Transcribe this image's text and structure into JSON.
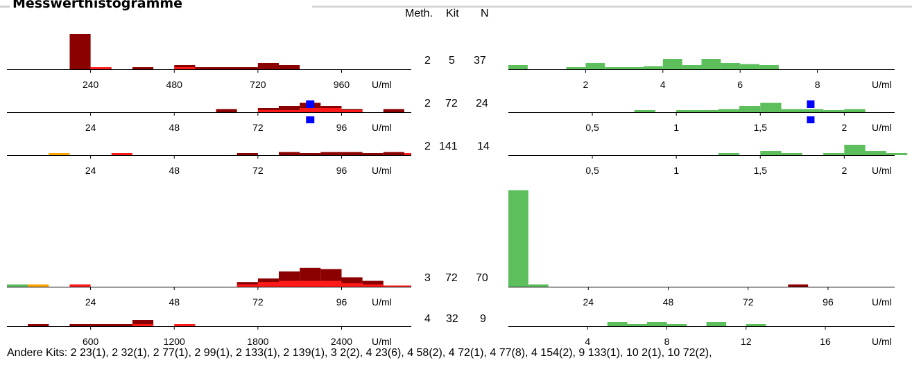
{
  "title": "Messwerthistogramme",
  "header": {
    "method": "Meth.",
    "kit": "Kit",
    "n": "N"
  },
  "colors": {
    "dark_red": "#8b0000",
    "red": "#ff1a1a",
    "orange": "#ffa500",
    "green": "#5cbf5c",
    "blue": "#0000ff"
  },
  "chart_data": [
    {
      "type": "bar",
      "method": "2",
      "kit": "5",
      "n": "37",
      "left": {
        "unit": "U/ml",
        "xlim": [
          0,
          1160
        ],
        "ticks": [
          {
            "value": 240,
            "label": "240"
          },
          {
            "value": 480,
            "label": "480"
          },
          {
            "value": 720,
            "label": "720"
          },
          {
            "value": 960,
            "label": "960"
          }
        ],
        "bars": [
          {
            "x0": 180,
            "x1": 240,
            "value": 17,
            "color": "#8b0000"
          },
          {
            "x0": 240,
            "x1": 300,
            "value": 1,
            "color": "#ff1a1a"
          },
          {
            "x0": 360,
            "x1": 420,
            "value": 1,
            "color": "#8b0000"
          },
          {
            "x0": 480,
            "x1": 540,
            "value": 2,
            "color": "#8b0000"
          },
          {
            "x0": 480,
            "x1": 540,
            "value": 1,
            "color": "#ff1a1a"
          },
          {
            "x0": 540,
            "x1": 720,
            "value": 1,
            "color": "#8b0000"
          },
          {
            "x0": 720,
            "x1": 780,
            "value": 3,
            "color": "#8b0000"
          },
          {
            "x0": 780,
            "x1": 840,
            "value": 2,
            "color": "#8b0000"
          }
        ]
      },
      "right": {
        "unit": "U/ml",
        "xlim": [
          0,
          10
        ],
        "ticks": [
          {
            "value": 2,
            "label": "2"
          },
          {
            "value": 4,
            "label": "4"
          },
          {
            "value": 6,
            "label": "6"
          },
          {
            "value": 8,
            "label": "8"
          }
        ],
        "bars": [
          {
            "x0": 0,
            "x1": 0.5,
            "value": 2
          },
          {
            "x0": 1.5,
            "x1": 2,
            "value": 1
          },
          {
            "x0": 2,
            "x1": 2.5,
            "value": 3
          },
          {
            "x0": 2.5,
            "x1": 3.5,
            "value": 1
          },
          {
            "x0": 3.5,
            "x1": 4,
            "value": 1.5
          },
          {
            "x0": 4,
            "x1": 4.5,
            "value": 5
          },
          {
            "x0": 4.5,
            "x1": 5,
            "value": 2
          },
          {
            "x0": 5,
            "x1": 5.5,
            "value": 5
          },
          {
            "x0": 5.5,
            "x1": 6,
            "value": 3
          },
          {
            "x0": 6,
            "x1": 6.5,
            "value": 2.5
          },
          {
            "x0": 6.5,
            "x1": 7,
            "value": 2
          }
        ]
      }
    },
    {
      "type": "bar",
      "method": "2",
      "kit": "72",
      "n": "24",
      "left": {
        "unit": "U/ml",
        "xlim": [
          0,
          116
        ],
        "ticks": [
          {
            "value": 24,
            "label": "24"
          },
          {
            "value": 48,
            "label": "48"
          },
          {
            "value": 72,
            "label": "72"
          },
          {
            "value": 96,
            "label": "96"
          }
        ],
        "bars": [
          {
            "x0": 60,
            "x1": 66,
            "value": 1.5,
            "color": "#8b0000"
          },
          {
            "x0": 72,
            "x1": 78,
            "value": 2,
            "color": "#8b0000"
          },
          {
            "x0": 78,
            "x1": 84,
            "value": 3,
            "color": "#8b0000"
          },
          {
            "x0": 84,
            "x1": 90,
            "value": 4.5,
            "color": "#8b0000"
          },
          {
            "x0": 90,
            "x1": 96,
            "value": 3,
            "color": "#8b0000"
          },
          {
            "x0": 96,
            "x1": 102,
            "value": 1.5,
            "color": "#8b0000"
          },
          {
            "x0": 108,
            "x1": 114,
            "value": 1.5,
            "color": "#8b0000"
          },
          {
            "x0": 72,
            "x1": 78,
            "value": 1,
            "color": "#ff1a1a"
          },
          {
            "x0": 78,
            "x1": 84,
            "value": 1,
            "color": "#ff1a1a"
          },
          {
            "x0": 84,
            "x1": 90,
            "value": 2,
            "color": "#ff1a1a"
          },
          {
            "x0": 90,
            "x1": 96,
            "value": 2,
            "color": "#ff1a1a"
          },
          {
            "x0": 96,
            "x1": 102,
            "value": 1,
            "color": "#ff1a1a"
          }
        ],
        "marker": {
          "value": 87
        }
      },
      "right": {
        "unit": "U/ml",
        "xlim": [
          0,
          2.3
        ],
        "ticks": [
          {
            "value": 0.5,
            "label": "0,5"
          },
          {
            "value": 1,
            "label": "1"
          },
          {
            "value": 1.5,
            "label": "1,5"
          },
          {
            "value": 2,
            "label": "2"
          }
        ],
        "bars": [
          {
            "x0": 0.75,
            "x1": 0.875,
            "value": 1
          },
          {
            "x0": 1,
            "x1": 1.25,
            "value": 1
          },
          {
            "x0": 1.25,
            "x1": 1.375,
            "value": 1.5
          },
          {
            "x0": 1.375,
            "x1": 1.5,
            "value": 3
          },
          {
            "x0": 1.5,
            "x1": 1.625,
            "value": 4.5
          },
          {
            "x0": 1.625,
            "x1": 1.875,
            "value": 1.5
          },
          {
            "x0": 1.875,
            "x1": 2,
            "value": 1
          },
          {
            "x0": 2,
            "x1": 2.125,
            "value": 1.5
          }
        ],
        "marker": {
          "value": 1.8
        }
      }
    },
    {
      "type": "bar",
      "method": "2",
      "kit": "141",
      "n": "14",
      "left": {
        "unit": "U/ml",
        "xlim": [
          0,
          116
        ],
        "ticks": [
          {
            "value": 24,
            "label": "24"
          },
          {
            "value": 48,
            "label": "48"
          },
          {
            "value": 72,
            "label": "72"
          },
          {
            "value": 96,
            "label": "96"
          }
        ],
        "bars": [
          {
            "x0": 12,
            "x1": 18,
            "value": 1,
            "color": "#ffa500"
          },
          {
            "x0": 30,
            "x1": 36,
            "value": 1,
            "color": "#ff1a1a"
          },
          {
            "x0": 66,
            "x1": 72,
            "value": 1,
            "color": "#8b0000"
          },
          {
            "x0": 78,
            "x1": 84,
            "value": 1.5,
            "color": "#8b0000"
          },
          {
            "x0": 84,
            "x1": 90,
            "value": 1,
            "color": "#8b0000"
          },
          {
            "x0": 90,
            "x1": 102,
            "value": 1.5,
            "color": "#8b0000"
          },
          {
            "x0": 102,
            "x1": 108,
            "value": 1,
            "color": "#8b0000"
          },
          {
            "x0": 108,
            "x1": 114,
            "value": 1.5,
            "color": "#8b0000"
          },
          {
            "x0": 114,
            "x1": 116,
            "value": 1,
            "color": "#ff1a1a"
          }
        ]
      },
      "right": {
        "unit": "U/ml",
        "xlim": [
          0,
          2.3
        ],
        "ticks": [
          {
            "value": 0.5,
            "label": "0,5"
          },
          {
            "value": 1,
            "label": "1"
          },
          {
            "value": 1.5,
            "label": "1,5"
          },
          {
            "value": 2,
            "label": "2"
          }
        ],
        "bars": [
          {
            "x0": 1.25,
            "x1": 1.375,
            "value": 1
          },
          {
            "x0": 1.5,
            "x1": 1.625,
            "value": 2
          },
          {
            "x0": 1.625,
            "x1": 1.75,
            "value": 1
          },
          {
            "x0": 1.875,
            "x1": 2,
            "value": 1
          },
          {
            "x0": 2,
            "x1": 2.125,
            "value": 5
          },
          {
            "x0": 2.125,
            "x1": 2.25,
            "value": 2
          },
          {
            "x0": 2.25,
            "x1": 2.375,
            "value": 1
          }
        ]
      }
    },
    {
      "type": "bar",
      "method": "3",
      "kit": "72",
      "n": "70",
      "left": {
        "unit": "U/ml",
        "xlim": [
          0,
          116
        ],
        "ticks": [
          {
            "value": 24,
            "label": "24"
          },
          {
            "value": 48,
            "label": "48"
          },
          {
            "value": 72,
            "label": "72"
          },
          {
            "value": 96,
            "label": "96"
          }
        ],
        "bars": [
          {
            "x0": 0,
            "x1": 6,
            "value": 1,
            "color": "#5cbf5c"
          },
          {
            "x0": 6,
            "x1": 12,
            "value": 1,
            "color": "#ffa500"
          },
          {
            "x0": 18,
            "x1": 24,
            "value": 1,
            "color": "#ff1a1a"
          },
          {
            "x0": 66,
            "x1": 72,
            "value": 2,
            "color": "#8b0000"
          },
          {
            "x0": 72,
            "x1": 78,
            "value": 3.5,
            "color": "#8b0000"
          },
          {
            "x0": 78,
            "x1": 84,
            "value": 6.5,
            "color": "#8b0000"
          },
          {
            "x0": 84,
            "x1": 90,
            "value": 8,
            "color": "#8b0000"
          },
          {
            "x0": 90,
            "x1": 96,
            "value": 7.5,
            "color": "#8b0000"
          },
          {
            "x0": 96,
            "x1": 102,
            "value": 4,
            "color": "#8b0000"
          },
          {
            "x0": 102,
            "x1": 108,
            "value": 2.5,
            "color": "#8b0000"
          },
          {
            "x0": 66,
            "x1": 72,
            "value": 1,
            "color": "#ff1a1a"
          },
          {
            "x0": 72,
            "x1": 78,
            "value": 2,
            "color": "#ff1a1a"
          },
          {
            "x0": 78,
            "x1": 84,
            "value": 2.5,
            "color": "#ff1a1a"
          },
          {
            "x0": 84,
            "x1": 96,
            "value": 2.5,
            "color": "#ff1a1a"
          },
          {
            "x0": 96,
            "x1": 102,
            "value": 1.5,
            "color": "#ff1a1a"
          },
          {
            "x0": 102,
            "x1": 108,
            "value": 1,
            "color": "#ff1a1a"
          },
          {
            "x0": 108,
            "x1": 116,
            "value": 0.5,
            "color": "#ff1a1a"
          }
        ]
      },
      "right": {
        "unit": "U/ml",
        "xlim": [
          0,
          116
        ],
        "ticks": [
          {
            "value": 24,
            "label": "24"
          },
          {
            "value": 48,
            "label": "48"
          },
          {
            "value": 72,
            "label": "72"
          },
          {
            "value": 96,
            "label": "96"
          }
        ],
        "bars": [
          {
            "x0": 0,
            "x1": 6,
            "value": 41,
            "color": "#5cbf5c"
          },
          {
            "x0": 6,
            "x1": 12,
            "value": 1,
            "color": "#5cbf5c"
          },
          {
            "x0": 84,
            "x1": 90,
            "value": 1,
            "color": "#8b0000"
          }
        ]
      }
    },
    {
      "type": "bar",
      "method": "4",
      "kit": "32",
      "n": "9",
      "left": {
        "unit": "U/ml",
        "xlim": [
          0,
          2900
        ],
        "ticks": [
          {
            "value": 600,
            "label": "600"
          },
          {
            "value": 1200,
            "label": "1200"
          },
          {
            "value": 1800,
            "label": "1800"
          },
          {
            "value": 2400,
            "label": "2400"
          }
        ],
        "bars": [
          {
            "x0": 150,
            "x1": 300,
            "value": 1,
            "color": "#8b0000"
          },
          {
            "x0": 450,
            "x1": 900,
            "value": 1,
            "color": "#8b0000"
          },
          {
            "x0": 900,
            "x1": 1050,
            "value": 3,
            "color": "#8b0000"
          },
          {
            "x0": 900,
            "x1": 1050,
            "value": 1,
            "color": "#ff1a1a"
          },
          {
            "x0": 1200,
            "x1": 1350,
            "value": 1,
            "color": "#ff1a1a"
          }
        ]
      },
      "right": {
        "unit": "U/ml",
        "xlim": [
          0,
          19.5
        ],
        "ticks": [
          {
            "value": 4,
            "label": "4"
          },
          {
            "value": 8,
            "label": "8"
          },
          {
            "value": 12,
            "label": "12"
          },
          {
            "value": 16,
            "label": "16"
          }
        ],
        "bars": [
          {
            "x0": 5,
            "x1": 6,
            "value": 2
          },
          {
            "x0": 6,
            "x1": 7,
            "value": 1
          },
          {
            "x0": 7,
            "x1": 8,
            "value": 2
          },
          {
            "x0": 8,
            "x1": 9,
            "value": 1
          },
          {
            "x0": 10,
            "x1": 11,
            "value": 2
          },
          {
            "x0": 12,
            "x1": 13,
            "value": 1
          }
        ]
      }
    }
  ],
  "other_kits": "Andere Kits: 2 23(1), 2 32(1), 2 77(1), 2 99(1), 2 133(1), 2 139(1), 3 2(2), 4 23(6), 4 58(2), 4 72(1), 4 77(8), 4 154(2), 9 133(1), 10 2(1), 10 72(2),"
}
